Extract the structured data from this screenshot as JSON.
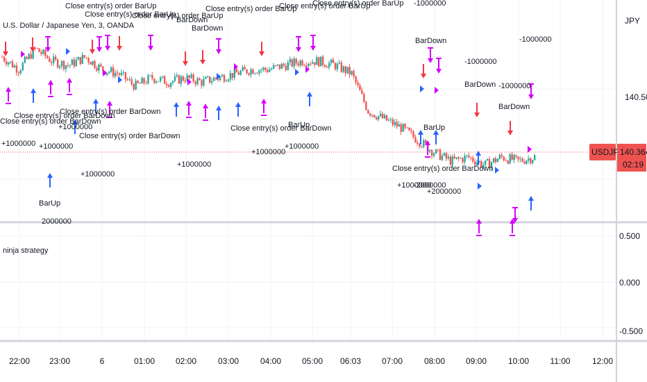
{
  "header": {
    "symbol_title": "U.S. Dollar / Japanese Yen, 3, OANDA",
    "currency": "JPY"
  },
  "indicator": {
    "name": "ninja strategy"
  },
  "price_badge": {
    "symbol": "USDJPY",
    "price": "140.364",
    "countdown": "02:19"
  },
  "colors": {
    "up": "#26a69a",
    "down": "#ef5350",
    "long": "#2962ff",
    "short": "#e91e63",
    "close": "#d500f9",
    "badge": "#ef5350",
    "grid": "#f0f3fa",
    "axis_line": "#d1d4dc"
  },
  "chart_data": [
    {
      "type": "candlestick",
      "title": "U.S. Dollar / Japanese Yen, 3, OANDA",
      "ylabel": "JPY",
      "x_ticks": [
        "22:00",
        "23:00",
        "6",
        "01:00",
        "02:00",
        "03:00",
        "04:00",
        "05:00",
        "06:03",
        "07:00",
        "08:00",
        "09:00",
        "10:00",
        "11:00",
        "12:00"
      ],
      "y_ticks": [
        "140.500"
      ],
      "ylim": [
        140.27,
        140.68
      ],
      "last_price": 140.364,
      "close_series_approx": [
        140.6,
        140.57,
        140.62,
        140.59,
        140.58,
        140.6,
        140.57,
        140.56,
        140.53,
        140.55,
        140.54,
        140.55,
        140.54,
        140.55,
        140.56,
        140.57,
        140.57,
        140.58,
        140.59,
        140.59,
        140.58,
        140.56,
        140.47,
        140.45,
        140.43,
        140.4,
        140.37,
        140.35,
        140.36,
        140.34,
        140.36,
        140.35,
        140.36
      ],
      "strategy_labels": [
        "Close entry(s) order BarUp",
        "Close entry(s) order BarDown",
        "BarUp",
        "BarDown",
        "+1000000",
        "-1000000",
        "+2000000",
        "-2000000"
      ]
    },
    {
      "type": "line",
      "title": "ninja strategy",
      "y_ticks": [
        "0.500",
        "0.000",
        "-0.500"
      ],
      "ylim": [
        -0.6,
        0.6
      ]
    }
  ],
  "annotations": [
    {
      "text": "Close entry(s) order BarUp"
    },
    {
      "text": "Close entry(s) order BarUp"
    },
    {
      "text": "Close entry(s) order BarUp"
    },
    {
      "text": "Close entry(s) order BarUp"
    },
    {
      "text": "Close entry(s) order BarUp"
    },
    {
      "text": "Close entry(s) order BarUp"
    },
    {
      "text": "Close entry(s) order BarDown"
    },
    {
      "text": "Close entry(s) order BarDown"
    },
    {
      "text": "Close entry(s) order BarDown"
    },
    {
      "text": "Close entry(s) order BarDown"
    },
    {
      "text": "Close entry(s) order BarDown"
    },
    {
      "text": "Close entry(s) order BarDown"
    },
    {
      "text": "BarUp"
    },
    {
      "text": "BarUp"
    },
    {
      "text": "BarUp"
    },
    {
      "text": "BarDown"
    },
    {
      "text": "BarDown"
    },
    {
      "text": "BarDown"
    },
    {
      "text": "BarDown"
    },
    {
      "text": "BarDown"
    },
    {
      "text": "-1000000"
    },
    {
      "text": "-1000000"
    },
    {
      "text": "-1000000"
    },
    {
      "text": "-1000000"
    },
    {
      "text": "+1000000"
    },
    {
      "text": "+1000000"
    },
    {
      "text": "+1000000"
    },
    {
      "text": "+1000000"
    },
    {
      "text": "+1000000"
    },
    {
      "text": "+1000000"
    },
    {
      "text": "+1000000"
    },
    {
      "text": "+1000000"
    },
    {
      "text": "-2000000"
    },
    {
      "text": "+2000000"
    },
    {
      "text": "2000000"
    }
  ]
}
